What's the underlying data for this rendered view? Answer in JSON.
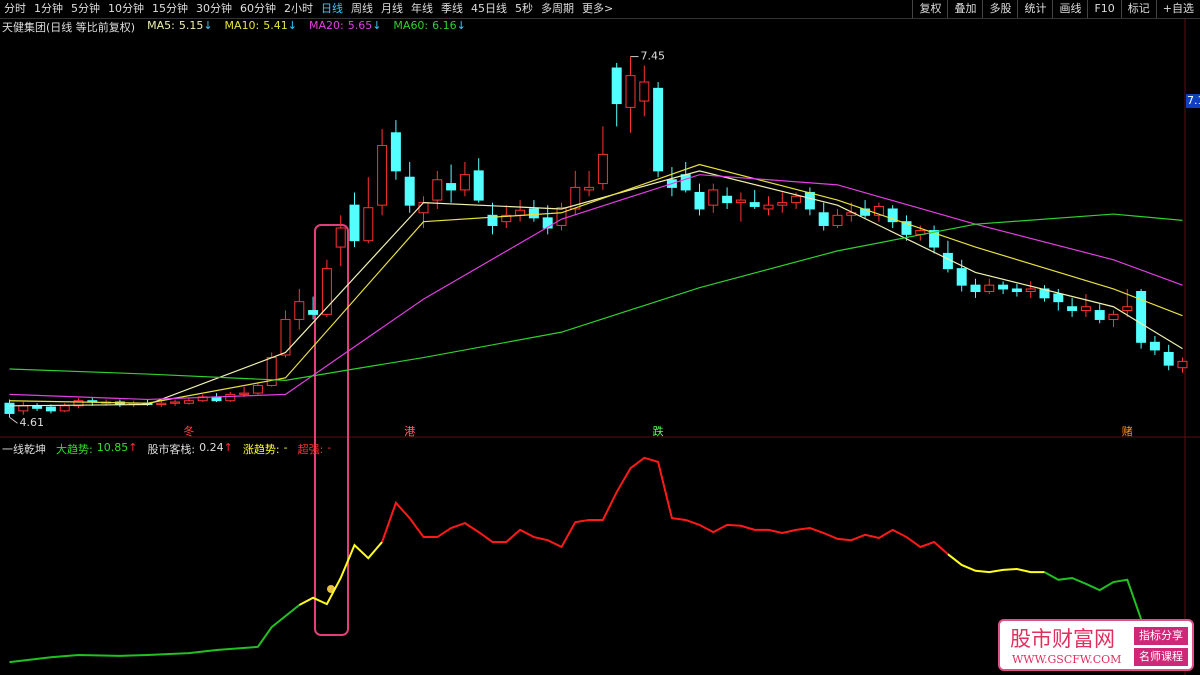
{
  "toolbar": {
    "left": [
      "分时",
      "1分钟",
      "5分钟",
      "10分钟",
      "15分钟",
      "30分钟",
      "60分钟",
      "2小时",
      {
        "label": "日线",
        "active": true
      },
      "周线",
      "月线",
      "年线",
      "季线",
      "45日线",
      "5秒",
      "多周期",
      "更多>"
    ],
    "right": [
      "复权",
      "叠加",
      "多股",
      "统计",
      "画线",
      "F10",
      "标记",
      "+自选"
    ]
  },
  "header": {
    "title": "天健集团(日线 等比前复权)"
  },
  "chart_data": [
    {
      "type": "candlestick",
      "up_color": "#ff3232",
      "down_color": "#54ffff",
      "ylim": [
        4.47,
        7.62
      ],
      "open": [
        4.72,
        4.66,
        4.7,
        4.69,
        4.66,
        4.7,
        4.74,
        4.72,
        4.73,
        4.71,
        4.72,
        4.71,
        4.72,
        4.72,
        4.74,
        4.77,
        4.74,
        4.79,
        4.8,
        4.86,
        5.1,
        5.38,
        5.45,
        5.42,
        5.95,
        6.28,
        6.0,
        6.28,
        6.85,
        6.5,
        6.22,
        6.32,
        6.45,
        6.4,
        6.55,
        6.2,
        6.15,
        6.2,
        6.25,
        6.18,
        6.12,
        6.25,
        6.4,
        6.45,
        7.36,
        7.05,
        7.1,
        7.2,
        6.48,
        6.52,
        6.38,
        6.28,
        6.35,
        6.3,
        6.3,
        6.25,
        6.28,
        6.3,
        6.38,
        6.22,
        6.12,
        6.2,
        6.25,
        6.2,
        6.25,
        6.15,
        6.05,
        6.08,
        5.9,
        5.78,
        5.65,
        5.6,
        5.65,
        5.62,
        5.6,
        5.62,
        5.58,
        5.48,
        5.45,
        5.45,
        5.38,
        5.45,
        5.6,
        5.2,
        5.12,
        5.0
      ],
      "high": [
        4.75,
        4.73,
        4.72,
        4.71,
        4.72,
        4.76,
        4.77,
        4.75,
        4.75,
        4.74,
        4.75,
        4.74,
        4.75,
        4.76,
        4.79,
        4.8,
        4.81,
        4.85,
        4.88,
        5.12,
        5.45,
        5.62,
        5.56,
        5.85,
        6.2,
        6.38,
        6.5,
        6.88,
        6.95,
        6.62,
        6.35,
        6.55,
        6.6,
        6.62,
        6.65,
        6.3,
        6.28,
        6.32,
        6.32,
        6.28,
        6.3,
        6.55,
        6.55,
        6.9,
        7.4,
        7.45,
        7.38,
        7.25,
        6.58,
        6.62,
        6.45,
        6.45,
        6.42,
        6.38,
        6.4,
        6.35,
        6.38,
        6.38,
        6.42,
        6.3,
        6.25,
        6.3,
        6.32,
        6.3,
        6.28,
        6.2,
        6.12,
        6.12,
        6.0,
        5.85,
        5.7,
        5.7,
        5.68,
        5.66,
        5.68,
        5.65,
        5.62,
        5.55,
        5.58,
        5.5,
        5.45,
        5.62,
        5.62,
        5.25,
        5.18,
        5.08
      ],
      "low": [
        4.61,
        4.63,
        4.66,
        4.64,
        4.65,
        4.68,
        4.7,
        4.7,
        4.69,
        4.69,
        4.7,
        4.69,
        4.7,
        4.71,
        4.73,
        4.73,
        4.73,
        4.77,
        4.79,
        4.85,
        5.08,
        5.3,
        5.38,
        5.4,
        5.8,
        5.95,
        5.98,
        6.2,
        6.48,
        6.22,
        6.1,
        6.25,
        6.3,
        6.35,
        6.3,
        6.05,
        6.1,
        6.15,
        6.15,
        6.05,
        6.08,
        6.2,
        6.35,
        6.4,
        6.9,
        6.85,
        6.98,
        6.5,
        6.35,
        6.38,
        6.2,
        6.22,
        6.25,
        6.15,
        6.25,
        6.2,
        6.22,
        6.25,
        6.2,
        6.08,
        6.1,
        6.15,
        6.18,
        6.15,
        6.1,
        6.0,
        6.0,
        5.9,
        5.75,
        5.6,
        5.55,
        5.58,
        5.58,
        5.56,
        5.55,
        5.52,
        5.45,
        5.4,
        5.4,
        5.35,
        5.32,
        5.4,
        5.15,
        5.1,
        4.98,
        4.96
      ],
      "close": [
        4.64,
        4.7,
        4.68,
        4.66,
        4.7,
        4.74,
        4.73,
        4.73,
        4.71,
        4.72,
        4.71,
        4.72,
        4.73,
        4.74,
        4.77,
        4.74,
        4.79,
        4.8,
        4.86,
        5.08,
        5.38,
        5.52,
        5.42,
        5.78,
        6.1,
        6.0,
        6.26,
        6.75,
        6.55,
        6.28,
        6.3,
        6.48,
        6.4,
        6.52,
        6.32,
        6.12,
        6.2,
        6.24,
        6.18,
        6.1,
        6.26,
        6.42,
        6.42,
        6.68,
        7.08,
        7.3,
        7.25,
        6.55,
        6.42,
        6.4,
        6.25,
        6.4,
        6.3,
        6.32,
        6.27,
        6.28,
        6.3,
        6.35,
        6.25,
        6.12,
        6.2,
        6.22,
        6.2,
        6.27,
        6.15,
        6.05,
        6.08,
        5.95,
        5.78,
        5.65,
        5.6,
        5.65,
        5.62,
        5.6,
        5.62,
        5.55,
        5.52,
        5.45,
        5.48,
        5.38,
        5.42,
        5.48,
        5.2,
        5.14,
        5.02,
        5.05
      ],
      "series": [
        {
          "name": "MA5:",
          "current": 5.15,
          "trend": "↓",
          "color": "#f0f0b0",
          "x": [
            0,
            10,
            20,
            30,
            40,
            50,
            60,
            70,
            80,
            85
          ],
          "values": [
            4.7,
            4.71,
            5.12,
            6.3,
            6.25,
            6.55,
            6.28,
            5.75,
            5.48,
            5.15
          ]
        },
        {
          "name": "MA10:",
          "current": 5.41,
          "trend": "↓",
          "color": "#e8e040",
          "x": [
            0,
            10,
            20,
            30,
            40,
            50,
            60,
            70,
            80,
            85
          ],
          "values": [
            4.74,
            4.72,
            4.92,
            6.15,
            6.22,
            6.6,
            6.32,
            5.95,
            5.62,
            5.41
          ]
        },
        {
          "name": "MA20:",
          "current": 5.65,
          "trend": "↓",
          "color": "#e040e0",
          "x": [
            0,
            10,
            20,
            30,
            40,
            50,
            60,
            70,
            80,
            85
          ],
          "values": [
            4.79,
            4.75,
            4.79,
            5.54,
            6.17,
            6.52,
            6.44,
            6.13,
            5.85,
            5.65
          ]
        },
        {
          "name": "MA60:",
          "current": 6.16,
          "trend": "↓",
          "color": "#30d030",
          "x": [
            0,
            10,
            20,
            30,
            40,
            50,
            60,
            70,
            80,
            85
          ],
          "values": [
            4.99,
            4.95,
            4.9,
            5.08,
            5.28,
            5.63,
            5.92,
            6.13,
            6.21,
            6.16
          ]
        }
      ],
      "annotations": [
        {
          "x": 45,
          "value": 7.45
        },
        {
          "x": 0,
          "value": 4.61
        }
      ],
      "signals": [
        {
          "x": 13,
          "label": "冬",
          "color": "#ff4040"
        },
        {
          "x": 29,
          "label": "港",
          "color": "#ff6060"
        },
        {
          "x": 47,
          "label": "跌",
          "color": "#60ff60"
        },
        {
          "x": 81,
          "label": "赌",
          "color": "#ff9020"
        }
      ],
      "price_tag": 7.1
    },
    {
      "type": "line",
      "title": "一线乾坤",
      "ylim": [
        0,
        50
      ],
      "legend": [
        {
          "name": "大趋势:",
          "value": 10.85,
          "trend": "↑",
          "color": "#30e030"
        },
        {
          "name": "股市客栈:",
          "value": 0.24,
          "trend": "↑",
          "color": "#dddddd"
        },
        {
          "name": "涨趋势:",
          "value": "-",
          "color": "#ffff30"
        },
        {
          "name": "超强:",
          "value": "-",
          "color": "#ff3030"
        }
      ],
      "series": [
        {
          "color": "#22c022",
          "x": [
            0,
            3,
            5,
            8,
            10,
            13,
            15,
            18,
            19,
            21
          ],
          "values": [
            1.3,
            2.4,
            2.9,
            2.7,
            2.9,
            3.3,
            4.0,
            4.7,
            9.1,
            14.0
          ]
        },
        {
          "color": "#ffff20",
          "x": [
            21,
            22,
            23,
            24,
            25,
            26,
            27
          ],
          "values": [
            14.0,
            15.6,
            14.2,
            20.0,
            27.3,
            24.4,
            28.0
          ]
        },
        {
          "color": "#ff1a1a",
          "x": [
            27,
            28,
            29,
            30,
            31,
            32,
            33,
            34,
            35,
            36,
            37,
            38,
            39,
            40,
            41,
            42,
            43,
            44,
            45,
            46,
            47,
            48,
            49,
            50,
            51,
            52,
            53,
            54,
            55,
            56,
            57,
            58,
            59,
            60,
            61,
            62,
            63,
            64,
            65,
            66,
            67,
            68
          ],
          "values": [
            28.0,
            36.7,
            33.3,
            29.1,
            29.1,
            31.1,
            32.2,
            30.2,
            28.0,
            28.0,
            30.7,
            29.1,
            28.4,
            26.9,
            32.4,
            32.9,
            32.9,
            39.1,
            44.4,
            46.7,
            45.8,
            33.3,
            32.9,
            31.8,
            30.2,
            31.8,
            31.6,
            30.7,
            30.7,
            30.0,
            30.7,
            31.1,
            30.0,
            28.7,
            28.4,
            29.6,
            28.9,
            30.7,
            29.1,
            26.9,
            28.0,
            25.3
          ]
        },
        {
          "color": "#ffff20",
          "x": [
            68,
            69,
            70,
            71,
            72,
            73,
            74,
            75
          ],
          "values": [
            25.3,
            22.9,
            21.6,
            21.3,
            21.8,
            22.0,
            21.3,
            21.3
          ]
        },
        {
          "color": "#22c022",
          "x": [
            75,
            76,
            77,
            78,
            79,
            80,
            81,
            82
          ],
          "values": [
            21.3,
            19.6,
            20.0,
            18.7,
            17.3,
            19.1,
            19.6,
            10.85
          ]
        }
      ]
    }
  ],
  "watermark": {
    "title": "股市财富网",
    "url": "WWW.GSCFW.COM",
    "tags": [
      "指标分享",
      "名师课程"
    ]
  }
}
